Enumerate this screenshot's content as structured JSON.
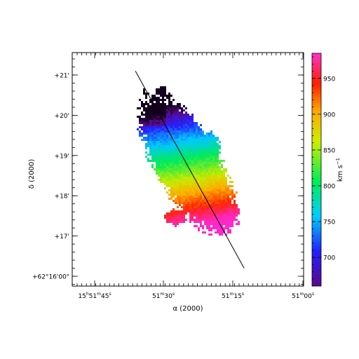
{
  "chart_data": {
    "type": "heatmap",
    "title": "",
    "xlabel": "α (2000)",
    "ylabel": "δ (2000)",
    "x_tick_labels": [
      {
        "h": "15",
        "hu": "h",
        "m": "51",
        "mu": "m",
        "s": "45",
        "su": "s"
      },
      {
        "h": "",
        "hu": "",
        "m": "51",
        "mu": "m",
        "s": "30",
        "su": "s"
      },
      {
        "h": "",
        "hu": "",
        "m": "51",
        "mu": "m",
        "s": "15",
        "su": "s"
      },
      {
        "h": "",
        "hu": "",
        "m": "51",
        "mu": "m",
        "s": "00",
        "su": "s"
      }
    ],
    "y_tick_labels": [
      "+62°16'00\"",
      "+17'",
      "+18'",
      "+19'",
      "+20'",
      "+21'"
    ],
    "colorbar": {
      "label": "km s",
      "label_exp": "−1",
      "range": [
        660,
        985
      ],
      "ticks": [
        700,
        750,
        800,
        850,
        900,
        950
      ]
    },
    "velocity_gradient_note": "velocity increases from ~680 km/s in the north (upper-left) to ~980 km/s in the south (lower-right)",
    "overlay_line": {
      "from": {
        "ra_s": 36.2,
        "dec_arcmin": 21.1
      },
      "to": {
        "ra_s": 12.7,
        "dec_arcmin": 16.2
      }
    }
  }
}
